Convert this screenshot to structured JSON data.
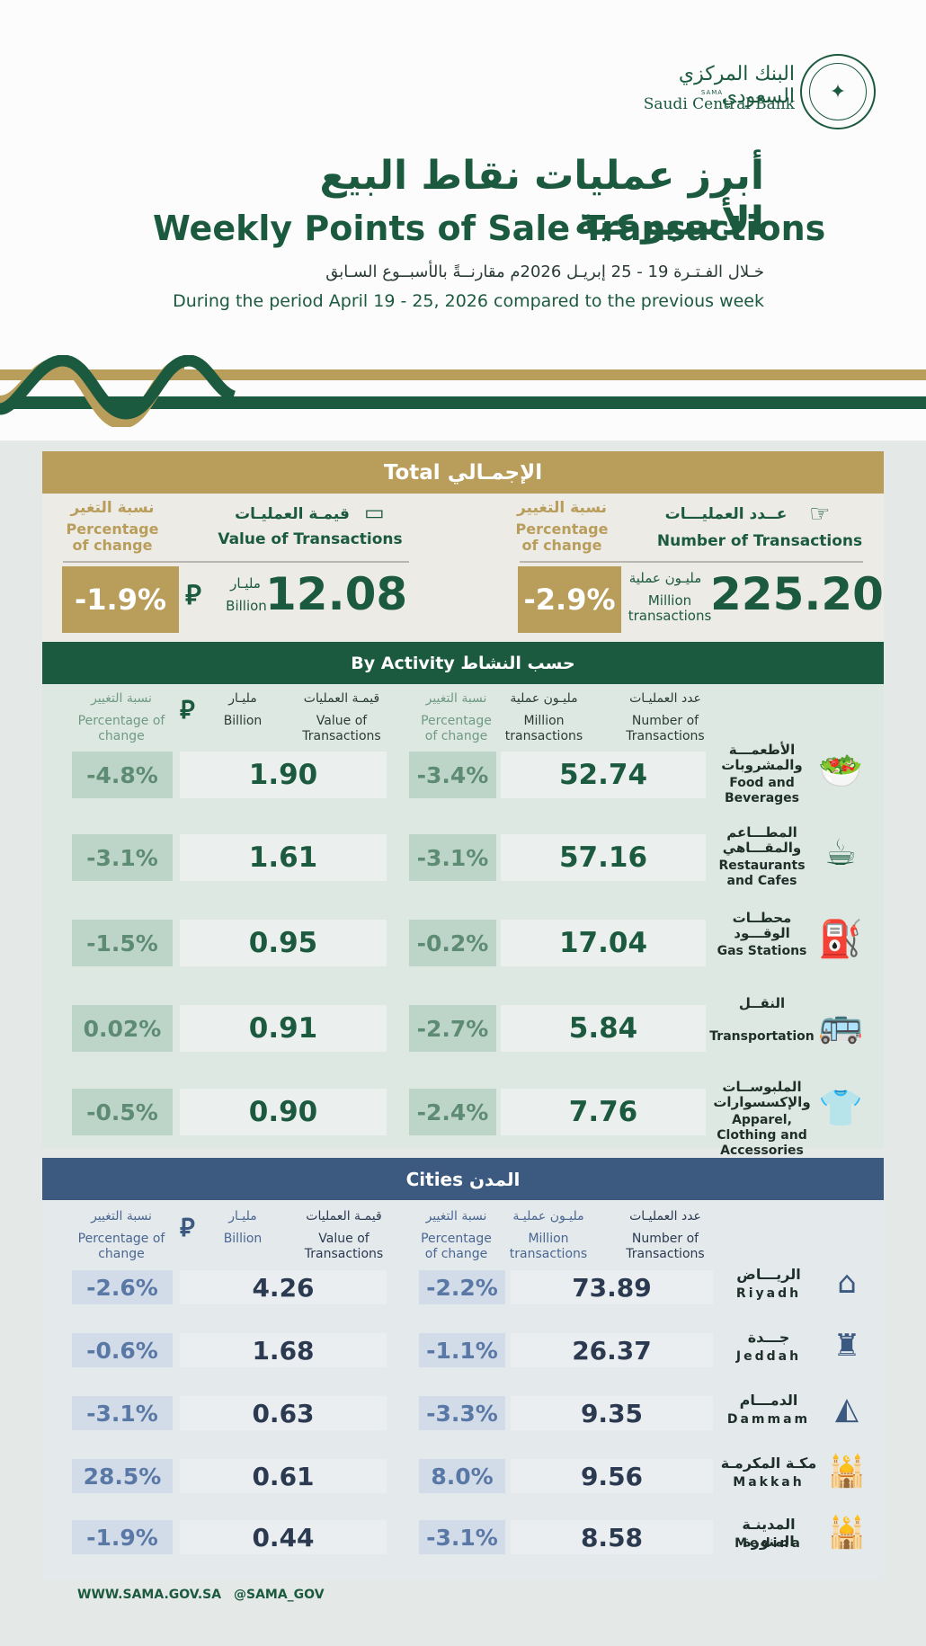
{
  "header": {
    "bank_name_ar": "البنك المركزي السعودي",
    "bank_abbr": "SAMA",
    "bank_name_en": "Saudi Central Bank",
    "title_ar": "أبرز عمليات نقاط البيع الأسبوعية",
    "title_en": "Weekly Points of Sale Transactions",
    "subtitle_ar": "خـلال الفـتـرة 19 - 25 إبريـل 2026م مقارنــةً بالأسبــوع السـابق",
    "subtitle_en": "During the period April  19 - 25, 2026 compared to the previous week"
  },
  "colors": {
    "green": "#1c5a40",
    "gold": "#b99d5b",
    "blue": "#3c5980"
  },
  "total": {
    "title": "Total  الإجمـالي",
    "number": {
      "label_ar": "عــدد العمليـــات",
      "label_en": "Number of Transactions",
      "pct_label_ar": "نسبة التغيير",
      "pct_label_en": "Percentage of change",
      "value": "225.20",
      "unit_ar": "مليـون عملية",
      "unit_en": "Million transactions",
      "change": "-2.9%",
      "icon": "card-hand-icon"
    },
    "value": {
      "label_ar": "قيمـة العمليـات",
      "label_en": "Value of Transactions",
      "pct_label_ar": "نسبة التغير",
      "pct_label_en": "Percentage of change",
      "value": "12.08",
      "unit_ar": "مليـار",
      "unit_en": "Billion",
      "currency_symbol": "⃁",
      "change": "-1.9%",
      "icon": "banknote-icon"
    }
  },
  "activity": {
    "title": "By Activity  حسب النشاط",
    "headers": {
      "num_ar": "عدد العمليـات",
      "num_en": "Number of Transactions",
      "mil_ar": "مليـون عملية",
      "mil_en": "Million transactions",
      "pct_ar": "نسبة التغيير",
      "pct_en": "Percentage of change",
      "val_ar": "قيمـة العمليات",
      "val_en": "Value of Transactions",
      "bil_ar": "مليـار",
      "bil_en": "Billion"
    },
    "rows": [
      {
        "label_ar": "الأطعمـــة والمشروبات",
        "label_en": "Food and Beverages",
        "icon": "food-icon",
        "icon_glyph": "🥗",
        "count": "52.74",
        "count_change": "-3.4%",
        "value": "1.90",
        "value_change": "-4.8%"
      },
      {
        "label_ar": "المطـــاعم والمقـــاهي",
        "label_en": "Restaurants and Cafes",
        "icon": "coffee-icon",
        "icon_glyph": "☕",
        "count": "57.16",
        "count_change": "-3.1%",
        "value": "1.61",
        "value_change": "-3.1%"
      },
      {
        "label_ar": "محطــات الوقـــود",
        "label_en": "Gas Stations",
        "icon": "fuel-pump-icon",
        "icon_glyph": "⛽",
        "count": "17.04",
        "count_change": "-0.2%",
        "value": "0.95",
        "value_change": "-1.5%"
      },
      {
        "label_ar": "النقــل",
        "label_en": "Transportation",
        "icon": "bus-car-icon",
        "icon_glyph": "🚌",
        "count": "5.84",
        "count_change": "-2.7%",
        "value": "0.91",
        "value_change": "0.02%"
      },
      {
        "label_ar": "الملبوســات والإكسسوارات",
        "label_en": "Apparel, Clothing and Accessories",
        "icon": "shirt-watch-icon",
        "icon_glyph": "👕",
        "count": "7.76",
        "count_change": "-2.4%",
        "value": "0.90",
        "value_change": "-0.5%"
      }
    ]
  },
  "cities": {
    "title": "Cities   المدن",
    "headers": {
      "num_ar": "عدد العمليـات",
      "num_en": "Number of Transactions",
      "mil_ar": "مليـون عمليـة",
      "mil_en": "Million transactions",
      "pct_ar": "نسبة التغيير",
      "pct_en": "Percentage of change",
      "val_ar": "قيمـة العمليات",
      "val_en": "Value of Transactions",
      "bil_ar": "مليـار",
      "bil_en": "Billion"
    },
    "rows": [
      {
        "label_ar": "الريـــاض",
        "label_en": "Riyadh",
        "icon": "kingdom-tower-icon",
        "icon_glyph": "⌂",
        "count": "73.89",
        "count_change": "-2.2%",
        "value": "4.26",
        "value_change": "-2.6%"
      },
      {
        "label_ar": "جـــدة",
        "label_en": "Jeddah",
        "icon": "water-tower-icon",
        "icon_glyph": "♜",
        "count": "26.37",
        "count_change": "-1.1%",
        "value": "1.68",
        "value_change": "-0.6%"
      },
      {
        "label_ar": "الدمـــام",
        "label_en": "Dammam",
        "icon": "dammam-landmark-icon",
        "icon_glyph": "◭",
        "count": "9.35",
        "count_change": "-3.3%",
        "value": "0.63",
        "value_change": "-3.1%"
      },
      {
        "label_ar": "مكـة المكرمـة",
        "label_en": "Makkah",
        "icon": "haram-mosque-icon",
        "icon_glyph": "🕌",
        "count": "9.56",
        "count_change": "8.0%",
        "value": "0.61",
        "value_change": "28.5%"
      },
      {
        "label_ar": "المدينـة المنورة",
        "label_en": "Medina",
        "icon": "prophet-mosque-icon",
        "icon_glyph": "🕌",
        "count": "8.58",
        "count_change": "-3.1%",
        "value": "0.44",
        "value_change": "-1.9%"
      }
    ]
  },
  "footer": {
    "website": "WWW.SAMA.GOV.SA",
    "handle": "@SAMA_GOV"
  }
}
